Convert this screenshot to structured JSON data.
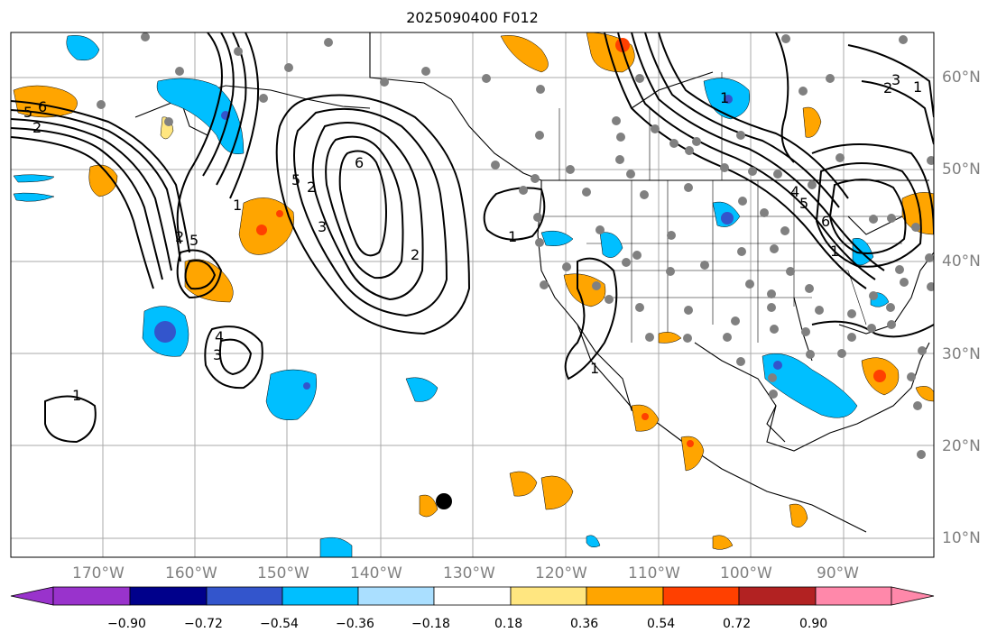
{
  "title": "2025090400 F012",
  "lon_labels": [
    "170°W",
    "160°W",
    "150°W",
    "140°W",
    "130°W",
    "120°W",
    "110°W",
    "100°W",
    "90°W"
  ],
  "lat_labels": [
    "60°N",
    "50°N",
    "40°N",
    "30°N",
    "20°N",
    "10°N"
  ],
  "colorbar": {
    "tick_labels": [
      "−0.90",
      "−0.72",
      "−0.54",
      "−0.36",
      "−0.18",
      "0.18",
      "0.36",
      "0.54",
      "0.72",
      "0.90"
    ],
    "colors": [
      "#9933cc",
      "#00008b",
      "#3355cc",
      "#00bfff",
      "#aadfff",
      "#ffffff",
      "#ffe680",
      "#ffa500",
      "#ff4000",
      "#b22222",
      "#ff88aa"
    ]
  },
  "contour_labels": [
    "6",
    "5",
    "2",
    "1",
    "2",
    "1",
    "5",
    "4",
    "5",
    "6",
    "3",
    "2",
    "3",
    "2",
    "1",
    "1",
    "1",
    "1",
    "2",
    "3",
    "4",
    "5",
    "6",
    "1"
  ],
  "colors": {
    "positive": "#ffa500",
    "positive_strong": "#ff4000",
    "negative": "#00bfff",
    "negative_strong": "#3355cc",
    "grid": "#aaaaaa",
    "station": "#808080"
  }
}
